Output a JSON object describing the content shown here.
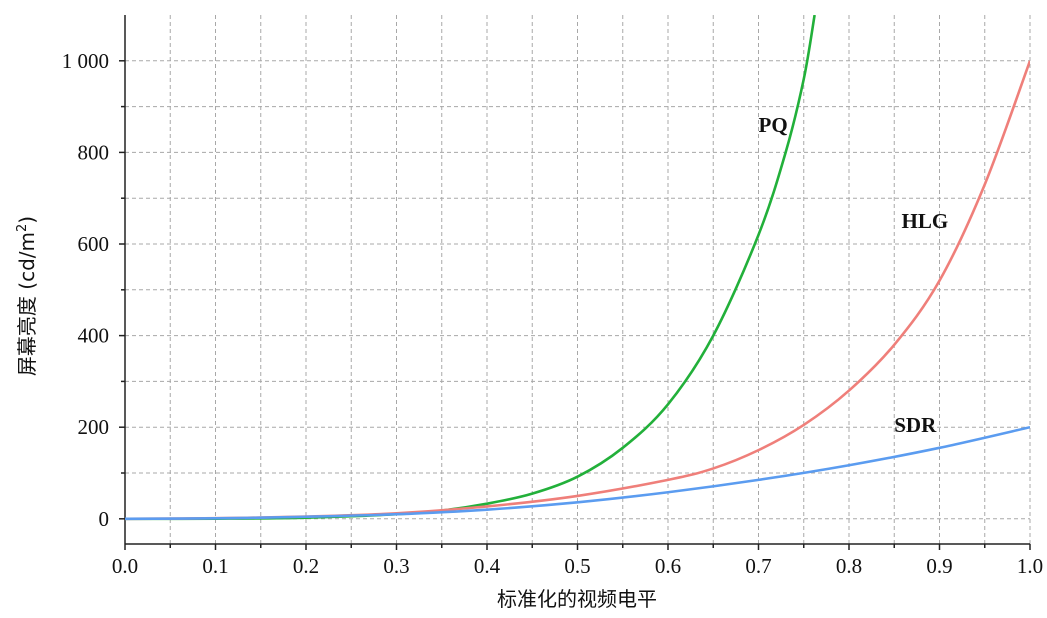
{
  "chart_data": {
    "type": "line",
    "title": "",
    "xlabel": "标准化的视频电平",
    "ylabel": "屏幕亮度 (cd/m",
    "ylabel_superscript": "2",
    "ylabel_suffix": ")",
    "xlim": [
      0,
      1
    ],
    "ylim": [
      -55,
      1100
    ],
    "x_ticks": [
      0,
      0.1,
      0.2,
      0.3,
      0.4,
      0.5,
      0.6,
      0.7,
      0.8,
      0.9,
      1.0
    ],
    "x_tick_labels": [
      "0.0",
      "0.1",
      "0.2",
      "0.3",
      "0.4",
      "0.5",
      "0.6",
      "0.7",
      "0.8",
      "0.9",
      "1.0"
    ],
    "y_ticks": [
      0,
      200,
      400,
      600,
      800,
      1000
    ],
    "y_tick_labels": [
      "0",
      "200",
      "400",
      "600",
      "800",
      "1 000"
    ],
    "grid": true,
    "series": [
      {
        "name": "PQ",
        "color": "#22b03a",
        "x": [
          0,
          0.1,
          0.2,
          0.3,
          0.35,
          0.4,
          0.45,
          0.5,
          0.55,
          0.6,
          0.65,
          0.7,
          0.73,
          0.75,
          0.762
        ],
        "values": [
          0,
          0.3,
          2.5,
          10,
          18,
          33,
          55,
          92,
          155,
          250,
          400,
          620,
          800,
          960,
          1100
        ]
      },
      {
        "name": "HLG",
        "color": "#ef7f7a",
        "x": [
          0,
          0.1,
          0.2,
          0.3,
          0.4,
          0.5,
          0.6,
          0.65,
          0.7,
          0.75,
          0.8,
          0.85,
          0.9,
          0.95,
          1.0
        ],
        "values": [
          0,
          1.3,
          5,
          12,
          27,
          50,
          85,
          110,
          150,
          205,
          280,
          380,
          520,
          730,
          1000
        ]
      },
      {
        "name": "SDR",
        "color": "#5b9cf0",
        "x": [
          0,
          0.1,
          0.2,
          0.3,
          0.4,
          0.5,
          0.6,
          0.7,
          0.8,
          0.9,
          1.0
        ],
        "values": [
          0,
          1,
          4.5,
          10,
          20,
          36,
          58,
          85,
          117,
          155,
          200
        ]
      }
    ],
    "series_labels": [
      {
        "name": "PQ",
        "x": 0.7,
        "y": 845
      },
      {
        "name": "HLG",
        "x": 0.858,
        "y": 635
      },
      {
        "name": "SDR",
        "x": 0.85,
        "y": 190
      }
    ]
  }
}
